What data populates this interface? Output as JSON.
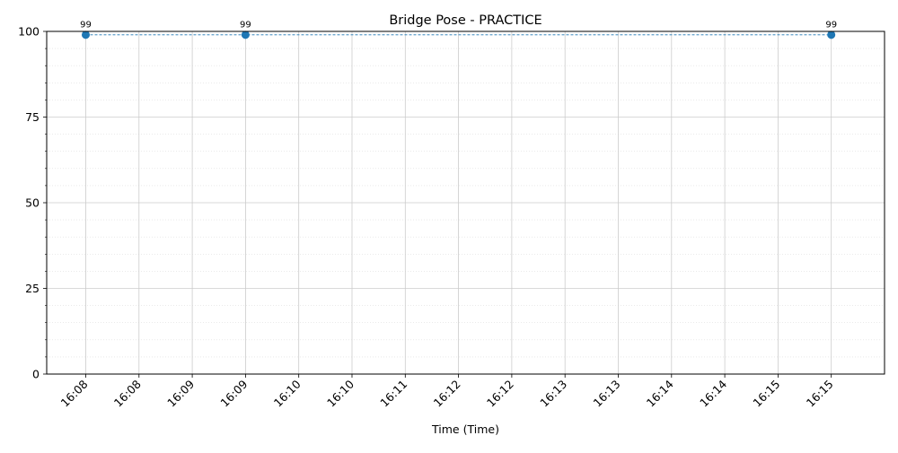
{
  "chart_data": {
    "type": "line",
    "title": "Bridge Pose - PRACTICE",
    "xlabel": "Time (Time)",
    "ylabel": "",
    "ylim": [
      0,
      100
    ],
    "xlim": [
      "16:07:38",
      "16:15:30"
    ],
    "y_ticks": [
      0,
      25,
      50,
      75,
      100
    ],
    "x_tick_times": [
      "16:08:00",
      "16:08:30",
      "16:09:00",
      "16:09:30",
      "16:10:00",
      "16:10:30",
      "16:11:00",
      "16:11:30",
      "16:12:00",
      "16:12:30",
      "16:13:00",
      "16:13:30",
      "16:14:00",
      "16:14:30",
      "16:15:00"
    ],
    "x_tick_labels": [
      "16:08",
      "16:08",
      "16:09",
      "16:09",
      "16:10",
      "16:10",
      "16:11",
      "16:12",
      "16:12",
      "16:13",
      "16:13",
      "16:14",
      "16:14",
      "16:15",
      "16:15"
    ],
    "grid": true,
    "legend": "none",
    "series": [
      {
        "x": [
          "16:08:00",
          "16:09:30",
          "16:15:00"
        ],
        "values": [
          99,
          99,
          99
        ],
        "labels": [
          "99",
          "99",
          "99"
        ],
        "color": "#1f77b4",
        "line_style": "dashed",
        "marker": "circle"
      }
    ]
  }
}
